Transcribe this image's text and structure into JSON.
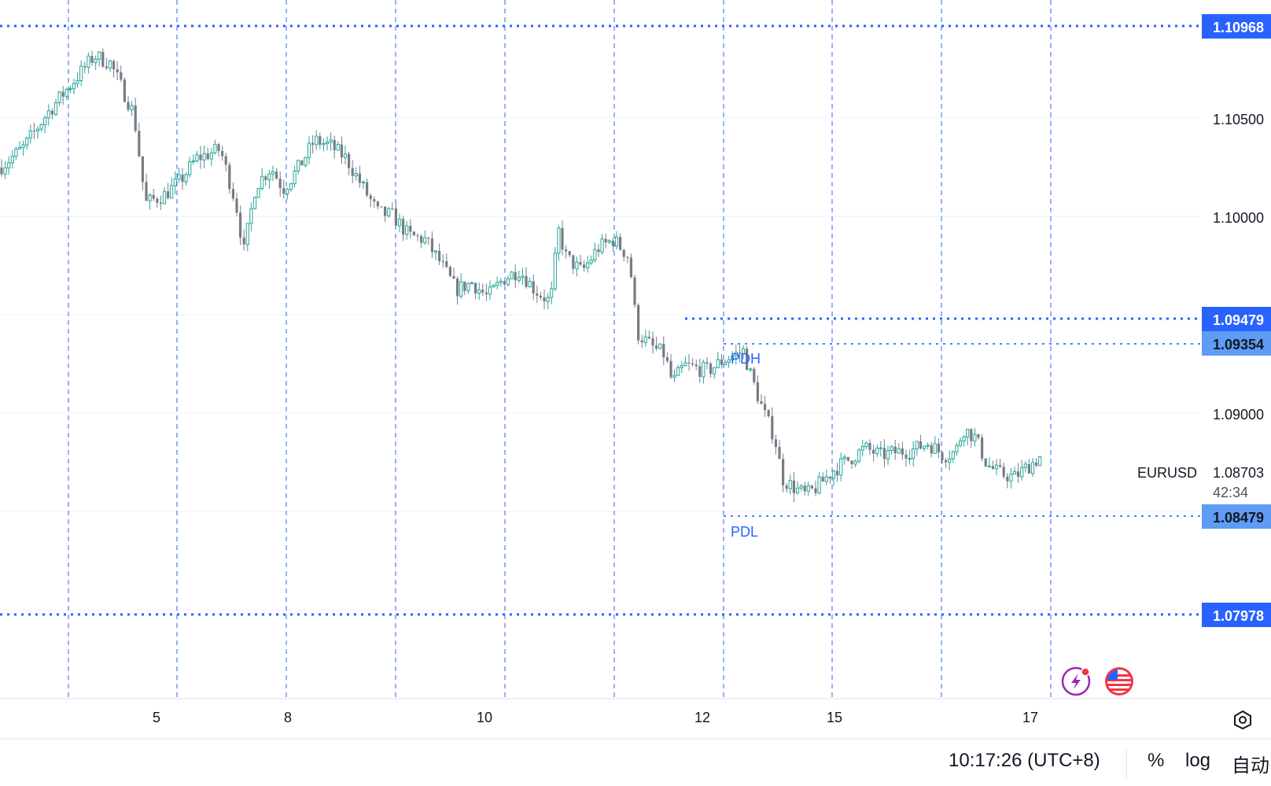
{
  "chart_data": {
    "type": "candlestick",
    "symbol": "EURUSD",
    "last_price": "1.08703",
    "countdown": "42:34",
    "y_range": [
      1.0735,
      1.1123
    ],
    "y_ticks": [
      "1.10500",
      "1.10000",
      "1.09000"
    ],
    "x_ticks": [
      "5",
      "8",
      "10",
      "12",
      "15",
      "17"
    ],
    "levels": [
      {
        "value": "1.10968",
        "label": "",
        "style": "strong"
      },
      {
        "value": "1.09479",
        "label": "",
        "style": "strong"
      },
      {
        "value": "1.09354",
        "label": "PDH",
        "style": "light"
      },
      {
        "value": "1.08479",
        "label": "PDL",
        "style": "light"
      },
      {
        "value": "1.07978",
        "label": "",
        "style": "strong"
      }
    ],
    "colors": {
      "up": "#26a69a",
      "down": "#787b86",
      "level": "#2962ff",
      "pd": "#4185f4"
    },
    "candles_path": [
      [
        0,
        1.103
      ],
      [
        30,
        1.1041
      ],
      [
        60,
        1.106
      ],
      [
        90,
        1.1076
      ],
      [
        120,
        1.1092
      ],
      [
        140,
        1.1088
      ],
      [
        170,
        1.106
      ],
      [
        185,
        1.101
      ],
      [
        210,
        1.1015
      ],
      [
        230,
        1.1023
      ],
      [
        250,
        1.1035
      ],
      [
        280,
        1.104
      ],
      [
        300,
        1.101
      ],
      [
        310,
        1.0983
      ],
      [
        325,
        1.102
      ],
      [
        345,
        1.103
      ],
      [
        360,
        1.1018
      ],
      [
        380,
        1.103
      ],
      [
        400,
        1.1045
      ],
      [
        420,
        1.1042
      ],
      [
        440,
        1.1035
      ],
      [
        460,
        1.102
      ],
      [
        480,
        1.1005
      ],
      [
        500,
        1.1003
      ],
      [
        520,
        1.0992
      ],
      [
        540,
        1.099
      ],
      [
        560,
        1.0977
      ],
      [
        580,
        1.0962
      ],
      [
        600,
        1.0966
      ],
      [
        620,
        1.0958
      ],
      [
        640,
        1.0968
      ],
      [
        660,
        1.0973
      ],
      [
        680,
        1.0962
      ],
      [
        700,
        1.0955
      ],
      [
        710,
        1.0995
      ],
      [
        720,
        1.098
      ],
      [
        740,
        1.0972
      ],
      [
        760,
        1.0985
      ],
      [
        780,
        1.099
      ],
      [
        800,
        1.098
      ],
      [
        810,
        1.0938
      ],
      [
        830,
        1.093
      ],
      [
        845,
        1.0926
      ],
      [
        855,
        1.091
      ],
      [
        870,
        1.092
      ],
      [
        900,
        1.0917
      ],
      [
        920,
        1.0923
      ],
      [
        945,
        1.0928
      ],
      [
        955,
        1.0914
      ],
      [
        970,
        1.0895
      ],
      [
        985,
        1.088
      ],
      [
        995,
        1.0857
      ],
      [
        1010,
        1.0852
      ],
      [
        1025,
        1.0848
      ],
      [
        1040,
        1.0853
      ],
      [
        1060,
        1.0862
      ],
      [
        1080,
        1.0868
      ],
      [
        1100,
        1.0874
      ],
      [
        1120,
        1.087
      ],
      [
        1140,
        1.0872
      ],
      [
        1160,
        1.0873
      ],
      [
        1180,
        1.0877
      ],
      [
        1200,
        1.087
      ],
      [
        1215,
        1.0872
      ],
      [
        1225,
        1.0885
      ],
      [
        1240,
        1.088
      ],
      [
        1255,
        1.0865
      ],
      [
        1270,
        1.086
      ],
      [
        1290,
        1.0858
      ],
      [
        1310,
        1.0865
      ],
      [
        1325,
        1.087
      ]
    ]
  },
  "bottom_bar": {
    "clock": "10:17:26 (UTC+8)",
    "percent": "%",
    "log": "log",
    "auto": "自动"
  },
  "icons": [
    "lightning-icon",
    "us-flag-icon",
    "settings-icon"
  ]
}
